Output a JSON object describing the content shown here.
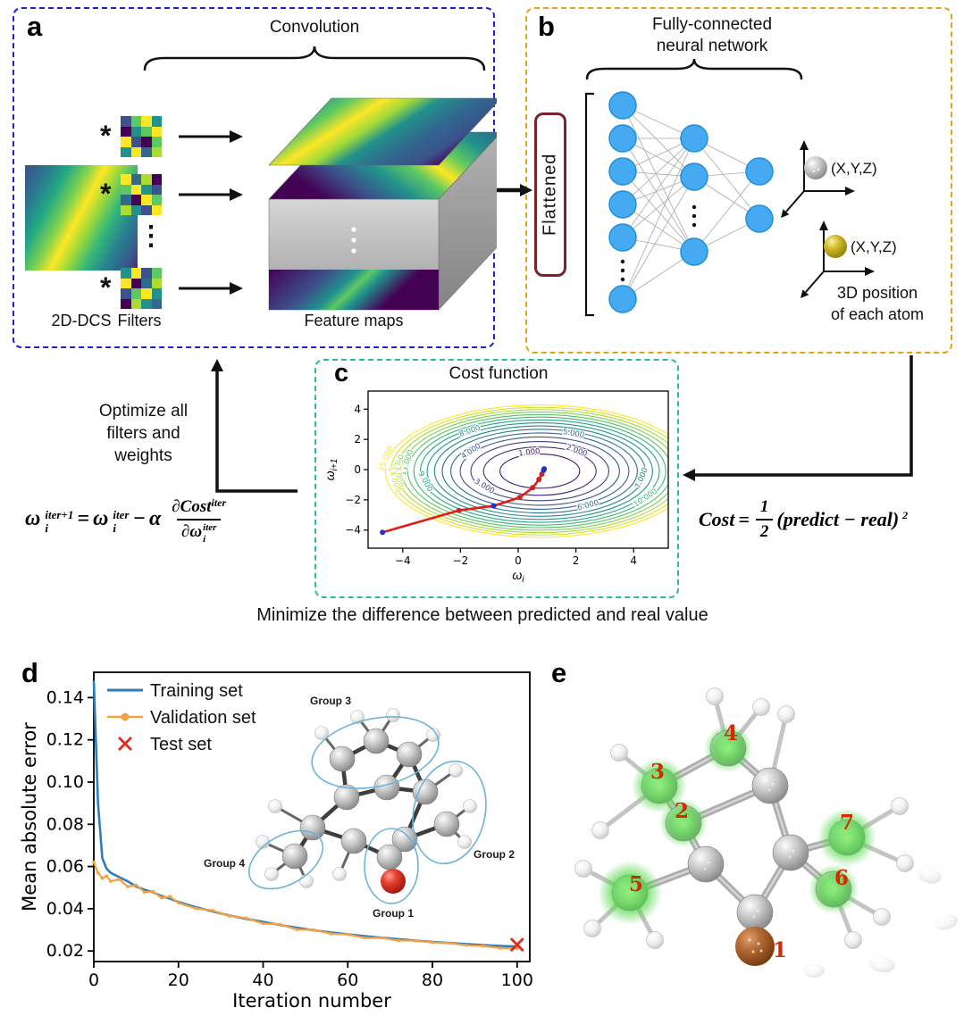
{
  "colors": {
    "panel_a_border": "#1f1fd4",
    "panel_b_border": "#e2a21c",
    "panel_c_border": "#2ebd8e",
    "node_blue": "#45aaf2",
    "node_blue_stroke": "#1d8fd8",
    "flattened_border": "#7b222c",
    "green_highlight": "#50d746",
    "oxygen_brown": "#a85a28",
    "atom_number_red": "#d42a00"
  },
  "panel_a": {
    "label": "a",
    "title": "Convolution",
    "asterisk": "*",
    "vdots": "⋮",
    "input_label": "2D-DCS",
    "filters_label": "Filters",
    "feature_maps_label": "Feature maps",
    "filters": [
      [
        "#3b528b",
        "#5ec962",
        "#fde725",
        "#21918c",
        "#440154",
        "#21918c",
        "#5ec962",
        "#fde725",
        "#fde725",
        "#3b528b",
        "#440154",
        "#5ec962",
        "#21918c",
        "#fde725",
        "#31688e",
        "#addc30"
      ],
      [
        "#fde725",
        "#31688e",
        "#addc30",
        "#440154",
        "#5ec962",
        "#fde725",
        "#21918c",
        "#3b528b",
        "#31688e",
        "#440154",
        "#fde725",
        "#5ec962",
        "#addc30",
        "#21918c",
        "#3b528b",
        "#fde725"
      ],
      [
        "#21918c",
        "#fde725",
        "#3b528b",
        "#5ec962",
        "#fde725",
        "#440154",
        "#31688e",
        "#addc30",
        "#3b528b",
        "#5ec962",
        "#fde725",
        "#21918c",
        "#440154",
        "#addc30",
        "#21918c",
        "#31688e"
      ]
    ]
  },
  "panel_b": {
    "label": "b",
    "title_line1": "Fully-connected",
    "title_line2": "neural network",
    "flattened_label": "Flattened",
    "atoms": [
      {
        "coords_label": "(X,Y,Z)",
        "color": "#9a9a9a"
      },
      {
        "coords_label": "(X,Y,Z)",
        "color": "#b5a312"
      }
    ],
    "caption_line1": "3D position",
    "caption_line2": "of each atom"
  },
  "flow": {
    "optimize_line1": "Optimize all",
    "optimize_line2": "filters and",
    "optimize_line3": "weights",
    "minimize_caption": "Minimize the difference between predicted and real value"
  },
  "equations": {
    "update": {
      "omega": "ω",
      "sub_i": "i",
      "sup_iter1": "iter+1",
      "equals": "=",
      "sup_iter": "iter",
      "minus": "−",
      "alpha": "α",
      "num_d": "∂",
      "num_f": "Cost",
      "num_sup": "iter",
      "den_d": "∂",
      "den_omega": "ω",
      "den_sub": "i",
      "den_sup": "iter"
    },
    "cost": {
      "lhs": "Cost",
      "equals": "=",
      "num": "1",
      "den": "2",
      "body": "(predict − real)",
      "sup": "2"
    }
  },
  "panel_c": {
    "label": "c"
  },
  "panel_d": {
    "label": "d",
    "groups": [
      "Group 1",
      "Group 2",
      "Group 3",
      "Group 4"
    ]
  },
  "panel_e": {
    "label": "e",
    "atom_numbers": [
      "1",
      "2",
      "3",
      "4",
      "5",
      "6",
      "7"
    ]
  },
  "chart_data": [
    {
      "id": "cost-contour",
      "type": "contour",
      "title": "Cost function",
      "xlabel_base": "ω",
      "xlabel_sub": "i",
      "ylabel_base": "ω",
      "ylabel_sub": "i+1",
      "xlim": [
        -5.2,
        5.2
      ],
      "ylim": [
        -5.2,
        5.2
      ],
      "xticks": [
        -4,
        -2,
        0,
        2,
        4
      ],
      "yticks": [
        -4,
        -2,
        0,
        2,
        4
      ],
      "center": [
        0.75,
        -0.1
      ],
      "levels": [
        1,
        2,
        3,
        4,
        5,
        6,
        7,
        8,
        9,
        10,
        11,
        12,
        13,
        14,
        15
      ],
      "label_decimals": 3,
      "radius_x_per_sqrt_level": 1.38,
      "radius_y_per_sqrt_level": 1.13,
      "colormap_stops": [
        "#440154",
        "#46327e",
        "#365c8d",
        "#277f8e",
        "#1fa187",
        "#4ac16d",
        "#a0da39",
        "#fde725"
      ],
      "descent_path": [
        [
          -4.7,
          -4.15
        ],
        [
          -2.05,
          -2.7
        ],
        [
          -0.85,
          -2.4
        ],
        [
          0.05,
          -1.85
        ],
        [
          0.5,
          -1.2
        ],
        [
          0.72,
          -0.65
        ],
        [
          0.82,
          -0.3
        ],
        [
          0.88,
          -0.05
        ],
        [
          0.9,
          0.05
        ]
      ],
      "path_color": "#e8190f",
      "point_colors": [
        "#2233cc",
        "#cc2222",
        "#2233cc",
        "#cc2222",
        "#cc2222",
        "#cc2222",
        "#cc2222",
        "#2233cc",
        "#2233cc"
      ]
    },
    {
      "id": "training-curve",
      "type": "line",
      "xlabel": "Iteration number",
      "ylabel": "Mean absolute error",
      "xlim": [
        0,
        103
      ],
      "ylim": [
        0.015,
        0.152
      ],
      "xticks": [
        0,
        20,
        40,
        60,
        80,
        100
      ],
      "yticks": [
        0.02,
        0.04,
        0.06,
        0.08,
        0.1,
        0.12,
        0.14
      ],
      "legend_position": "upper-left",
      "series": [
        {
          "name": "Training set",
          "color": "#2e7ebc",
          "style": "line",
          "x": [
            0,
            1,
            2,
            3,
            4,
            6,
            8,
            10,
            12,
            14,
            16,
            18,
            20,
            24,
            28,
            32,
            36,
            40,
            44,
            48,
            52,
            56,
            60,
            64,
            68,
            72,
            76,
            80,
            84,
            88,
            92,
            96,
            100
          ],
          "y": [
            0.148,
            0.09,
            0.064,
            0.059,
            0.057,
            0.055,
            0.053,
            0.0505,
            0.049,
            0.0478,
            0.046,
            0.0448,
            0.0432,
            0.0408,
            0.0388,
            0.0368,
            0.0352,
            0.0338,
            0.0323,
            0.031,
            0.0298,
            0.0288,
            0.0279,
            0.027,
            0.0263,
            0.0256,
            0.0249,
            0.0243,
            0.0238,
            0.0233,
            0.0228,
            0.0224,
            0.0221
          ]
        },
        {
          "name": "Validation set",
          "color": "#f5a142",
          "style": "line-dot",
          "x": [
            0,
            1,
            2,
            3,
            4,
            6,
            8,
            10,
            12,
            14,
            16,
            18,
            20,
            24,
            28,
            32,
            36,
            40,
            44,
            48,
            52,
            56,
            60,
            64,
            68,
            72,
            76,
            80,
            84,
            88,
            92,
            96,
            100
          ],
          "y": [
            0.062,
            0.057,
            0.0545,
            0.0555,
            0.053,
            0.054,
            0.0505,
            0.0512,
            0.0478,
            0.0482,
            0.0452,
            0.0458,
            0.0428,
            0.0402,
            0.0392,
            0.0366,
            0.0356,
            0.033,
            0.0326,
            0.0302,
            0.03,
            0.0282,
            0.0278,
            0.0262,
            0.0262,
            0.025,
            0.0249,
            0.024,
            0.0237,
            0.0227,
            0.0224,
            0.0214,
            0.0212
          ]
        },
        {
          "name": "Test set",
          "color": "#e02a1c",
          "style": "x-marker",
          "x": [
            100
          ],
          "y": [
            0.023
          ]
        }
      ]
    }
  ]
}
